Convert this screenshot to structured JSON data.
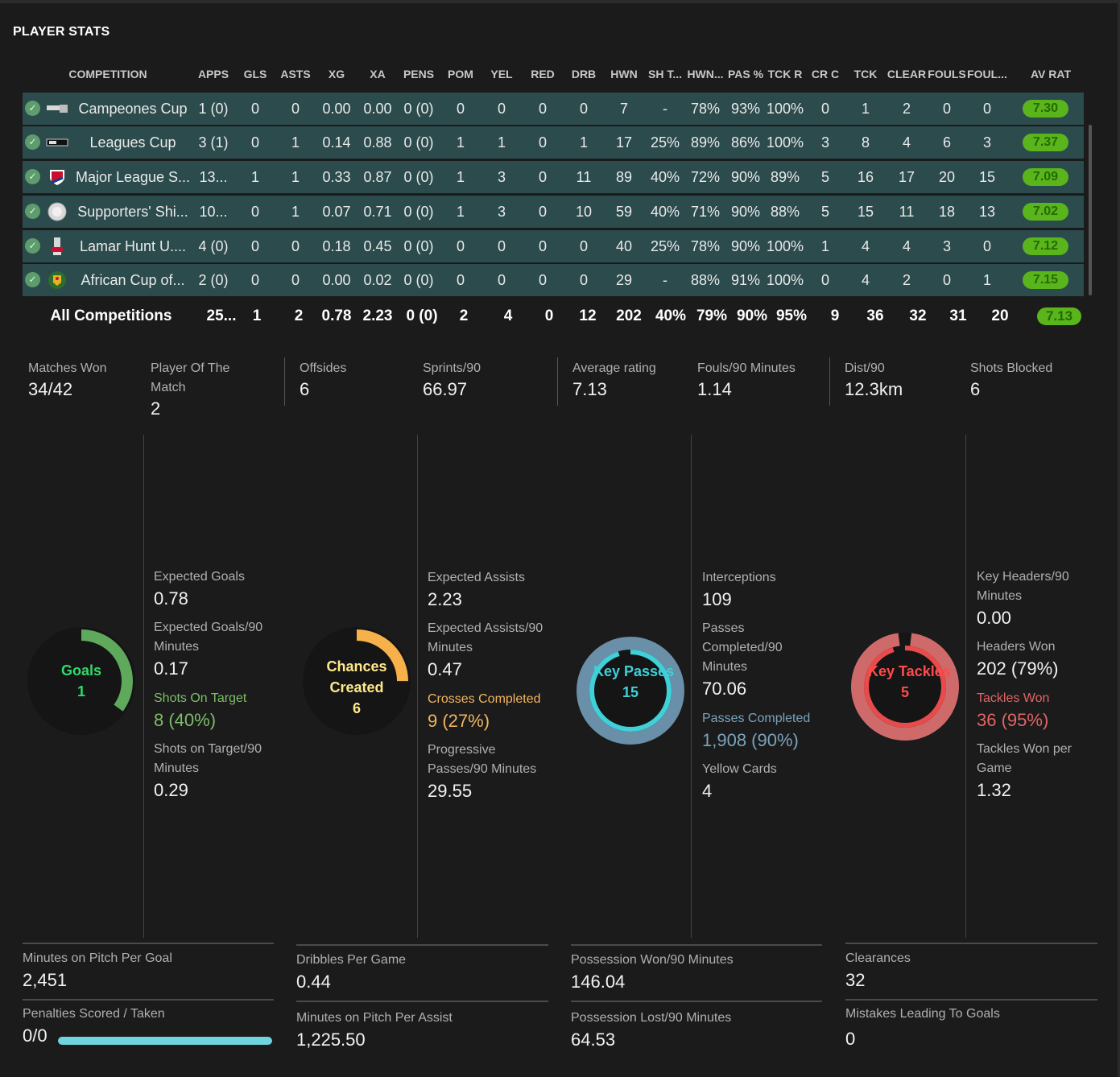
{
  "title": "PLAYER STATS",
  "table": {
    "headers": [
      "COMPETITION",
      "APPS",
      "GLS",
      "ASTS",
      "XG",
      "XA",
      "PENS",
      "POM",
      "YEL",
      "RED",
      "DRB",
      "HWN",
      "SH T...",
      "HWN...",
      "PAS %",
      "TCK R",
      "CR C",
      "TCK",
      "CLEAR",
      "FOULS",
      "FOUL...",
      "AV RAT"
    ],
    "rows": [
      {
        "name": "Campeones Cup",
        "apps": "1 (0)",
        "gls": "0",
        "asts": "0",
        "xg": "0.00",
        "xa": "0.00",
        "pens": "0 (0)",
        "pom": "0",
        "yel": "0",
        "red": "0",
        "drb": "0",
        "hwn": "7",
        "sht": "-",
        "hwnp": "78%",
        "pas": "93%",
        "tckr": "100%",
        "crc": "0",
        "tck": "1",
        "clear": "2",
        "fouls": "0",
        "foulsa": "0",
        "rating": "7.30"
      },
      {
        "name": "Leagues Cup",
        "apps": "3 (1)",
        "gls": "0",
        "asts": "1",
        "xg": "0.14",
        "xa": "0.88",
        "pens": "0 (0)",
        "pom": "1",
        "yel": "1",
        "red": "0",
        "drb": "1",
        "hwn": "17",
        "sht": "25%",
        "hwnp": "89%",
        "pas": "86%",
        "tckr": "100%",
        "crc": "3",
        "tck": "8",
        "clear": "4",
        "fouls": "6",
        "foulsa": "3",
        "rating": "7.37"
      },
      {
        "name": "Major League S...",
        "apps": "13...",
        "gls": "1",
        "asts": "1",
        "xg": "0.33",
        "xa": "0.87",
        "pens": "0 (0)",
        "pom": "1",
        "yel": "3",
        "red": "0",
        "drb": "11",
        "hwn": "89",
        "sht": "40%",
        "hwnp": "72%",
        "pas": "90%",
        "tckr": "89%",
        "crc": "5",
        "tck": "16",
        "clear": "17",
        "fouls": "20",
        "foulsa": "15",
        "rating": "7.09"
      },
      {
        "name": "Supporters' Shi...",
        "apps": "10...",
        "gls": "0",
        "asts": "1",
        "xg": "0.07",
        "xa": "0.71",
        "pens": "0 (0)",
        "pom": "1",
        "yel": "3",
        "red": "0",
        "drb": "10",
        "hwn": "59",
        "sht": "40%",
        "hwnp": "71%",
        "pas": "90%",
        "tckr": "88%",
        "crc": "5",
        "tck": "15",
        "clear": "11",
        "fouls": "18",
        "foulsa": "13",
        "rating": "7.02"
      },
      {
        "name": "Lamar Hunt U....",
        "apps": "4 (0)",
        "gls": "0",
        "asts": "0",
        "xg": "0.18",
        "xa": "0.45",
        "pens": "0 (0)",
        "pom": "0",
        "yel": "0",
        "red": "0",
        "drb": "0",
        "hwn": "40",
        "sht": "25%",
        "hwnp": "78%",
        "pas": "90%",
        "tckr": "100%",
        "crc": "1",
        "tck": "4",
        "clear": "4",
        "fouls": "3",
        "foulsa": "0",
        "rating": "7.12"
      },
      {
        "name": "African Cup of...",
        "apps": "2 (0)",
        "gls": "0",
        "asts": "0",
        "xg": "0.00",
        "xa": "0.02",
        "pens": "0 (0)",
        "pom": "0",
        "yel": "0",
        "red": "0",
        "drb": "0",
        "hwn": "29",
        "sht": "-",
        "hwnp": "88%",
        "pas": "91%",
        "tckr": "100%",
        "crc": "0",
        "tck": "4",
        "clear": "2",
        "fouls": "0",
        "foulsa": "1",
        "rating": "7.15"
      }
    ],
    "total": {
      "name": "All Competitions",
      "apps": "25...",
      "gls": "1",
      "asts": "2",
      "xg": "0.78",
      "xa": "2.23",
      "pens": "0 (0)",
      "pom": "2",
      "yel": "4",
      "red": "0",
      "drb": "12",
      "hwn": "202",
      "sht": "40%",
      "hwnp": "79%",
      "pas": "90%",
      "tckr": "95%",
      "crc": "9",
      "tck": "36",
      "clear": "32",
      "fouls": "31",
      "foulsa": "20",
      "rating": "7.13"
    }
  },
  "summary": [
    {
      "label": "Matches Won",
      "value": "34/42"
    },
    {
      "label": "Player Of The Match",
      "value": "2"
    },
    {
      "label": "Offsides",
      "value": "6"
    },
    {
      "label": "Sprints/90",
      "value": "66.97"
    },
    {
      "label": "Average rating",
      "value": "7.13"
    },
    {
      "label": "Fouls/90 Minutes",
      "value": "1.14"
    },
    {
      "label": "Dist/90",
      "value": "12.3km"
    },
    {
      "label": "Shots Blocked",
      "value": "6"
    }
  ],
  "rings": [
    {
      "label": "Goals",
      "value": "1",
      "color": "#5ea95c",
      "fraction": 0.35
    },
    {
      "label": "Chances Created",
      "value": "6",
      "color": "#f7b14a",
      "fraction": 0.25
    },
    {
      "label": "Key Passes",
      "value": "15",
      "color": "#3fd0d8",
      "fraction": 0.95
    },
    {
      "label": "Key Tackles",
      "value": "5",
      "color": "#e84b4b",
      "fraction": 0.95
    }
  ],
  "col1": {
    "xg_label": "Expected Goals",
    "xg": "0.78",
    "xg90_label": "Expected Goals/90 Minutes",
    "xg90": "0.17",
    "sot_label": "Shots On Target",
    "sot": "8 (40%)",
    "sot90_label": "Shots on Target/90 Minutes",
    "sot90": "0.29"
  },
  "col2": {
    "xa_label": "Expected Assists",
    "xa": "2.23",
    "xa90_label": "Expected Assists/90 Minutes",
    "xa90": "0.47",
    "cross_label": "Crosses Completed",
    "cross": "9 (27%)",
    "prog_label": "Progressive Passes/90 Minutes",
    "prog": "29.55"
  },
  "col3": {
    "int_label": "Interceptions",
    "int": "109",
    "pc90_label": "Passes Completed/90 Minutes",
    "pc90": "70.06",
    "pc_label": "Passes Completed",
    "pc": "1,908 (90%)",
    "yc_label": "Yellow Cards",
    "yc": "4"
  },
  "col4": {
    "kh_label": "Key Headers/90 Minutes",
    "kh": "0.00",
    "hw_label": "Headers Won",
    "hw": "202 (79%)",
    "tw_label": "Tackles Won",
    "tw": "36 (95%)",
    "twg_label": "Tackles Won per Game",
    "twg": "1.32"
  },
  "bottom": {
    "mpg_label": "Minutes on Pitch Per Goal",
    "mpg": "2,451",
    "pen_label": "Penalties Scored / Taken",
    "pen": "0/0",
    "pen_fraction": 1.0,
    "dpg_label": "Dribbles Per Game",
    "dpg": "0.44",
    "mpa_label": "Minutes on Pitch Per Assist",
    "mpa": "1,225.50",
    "pw_label": "Possession Won/90 Minutes",
    "pw": "146.04",
    "pl_label": "Possession Lost/90 Minutes",
    "pl": "64.53",
    "clr_label": "Clearances",
    "clr": "32",
    "mist_label": "Mistakes Leading To Goals",
    "mist": "0"
  }
}
